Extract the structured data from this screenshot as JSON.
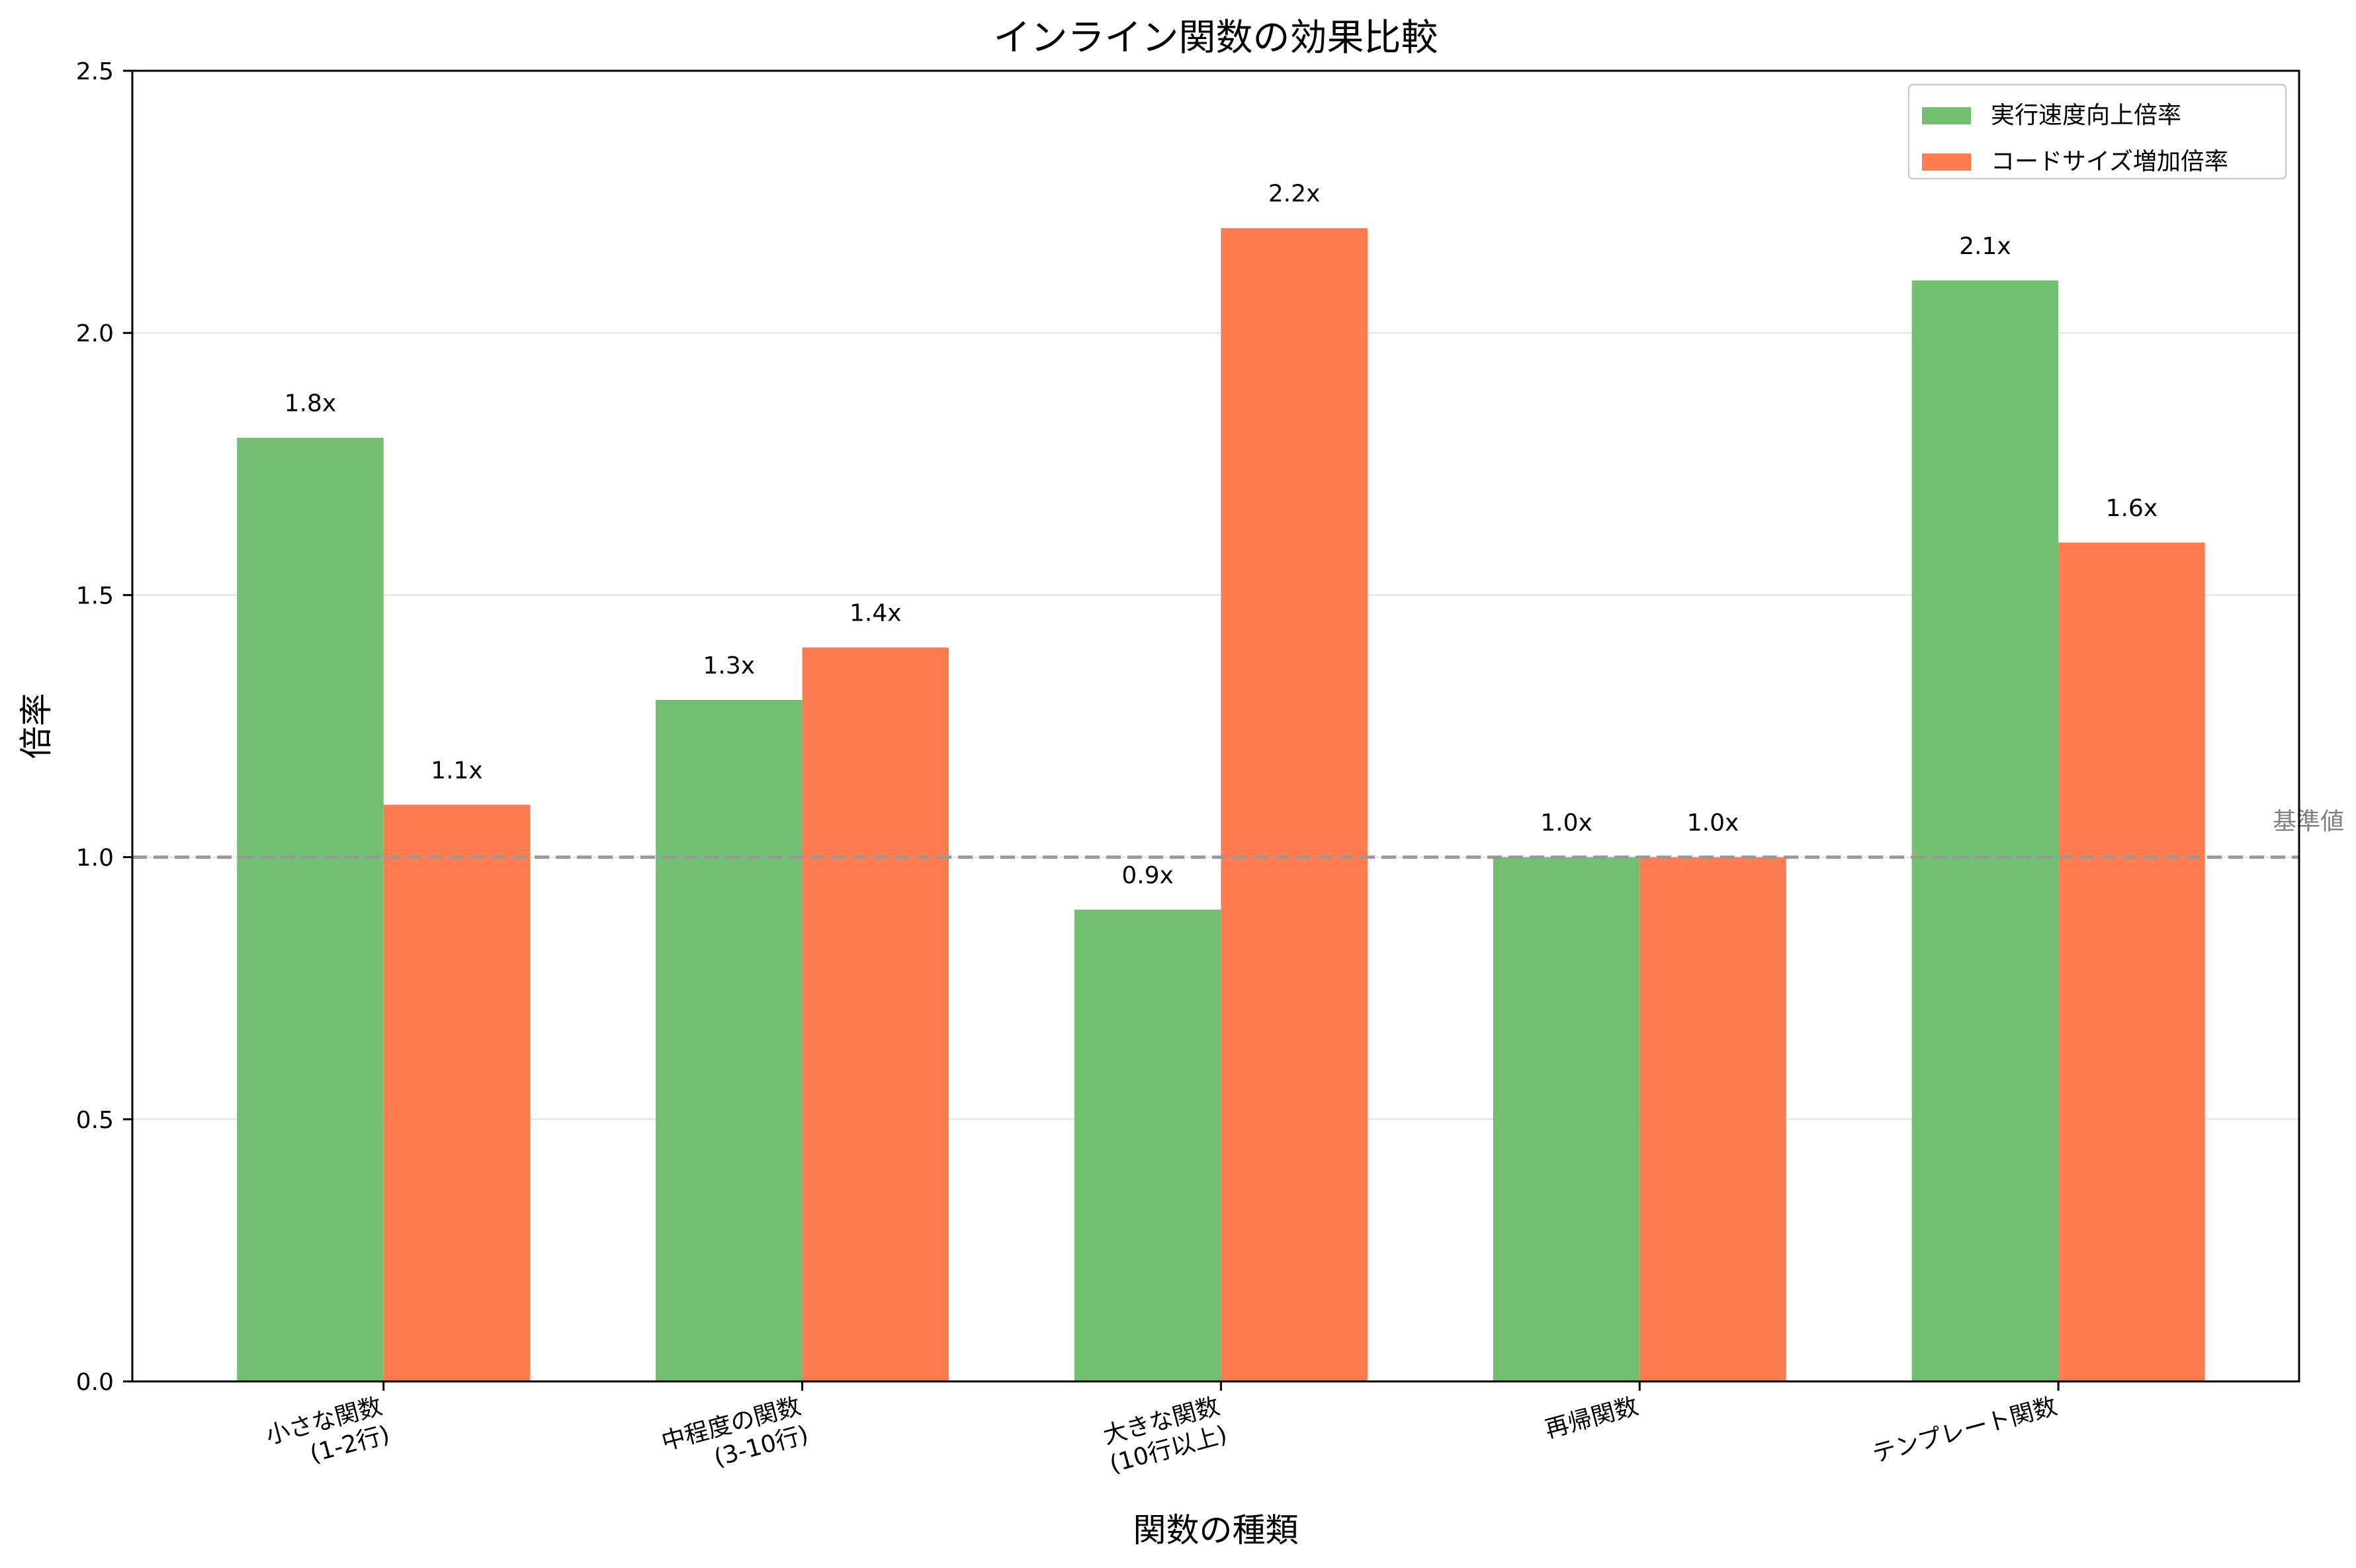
{
  "chart_data": {
    "type": "bar",
    "title": "インライン関数の効果比較",
    "xlabel": "関数の種類",
    "ylabel": "倍率",
    "categories": [
      [
        "小さな関数",
        "(1-2行)"
      ],
      [
        "中程度の関数",
        "(3-10行)"
      ],
      [
        "大きな関数",
        "(10行以上)"
      ],
      [
        "再帰関数"
      ],
      [
        "テンプレート関数"
      ]
    ],
    "series": [
      {
        "name": "実行速度向上倍率",
        "color": "#72bf72",
        "values": [
          1.8,
          1.3,
          0.9,
          1.0,
          2.1
        ],
        "labels": [
          "1.8x",
          "1.3x",
          "0.9x",
          "1.0x",
          "2.1x"
        ]
      },
      {
        "name": "コードサイズ増加倍率",
        "color": "#ff7b50",
        "values": [
          1.1,
          1.4,
          2.2,
          1.0,
          1.6
        ],
        "labels": [
          "1.1x",
          "1.4x",
          "2.2x",
          "1.0x",
          "1.6x"
        ]
      }
    ],
    "ylim": [
      0,
      2.5
    ],
    "yticks": [
      0.0,
      0.5,
      1.0,
      1.5,
      2.0,
      2.5
    ],
    "ytick_labels": [
      "0.0",
      "0.5",
      "1.0",
      "1.5",
      "2.0",
      "2.5"
    ],
    "reference_line": {
      "value": 1.0,
      "label": "基準値",
      "color": "#999999",
      "style": "dashed"
    },
    "grid": "y",
    "legend_position": "top-right",
    "xtick_rotation": 15
  }
}
